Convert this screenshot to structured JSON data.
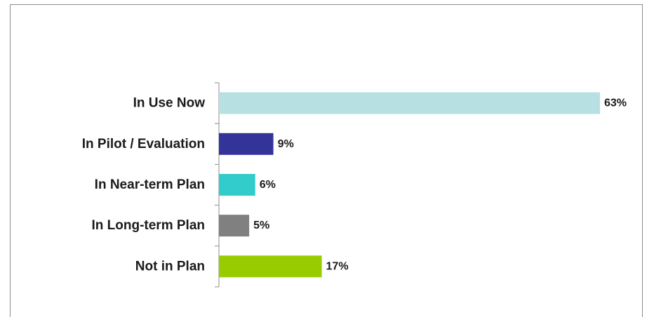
{
  "chart_data": {
    "type": "bar",
    "orientation": "horizontal",
    "categories": [
      "In Use Now",
      "In Pilot / Evaluation",
      "In Near-term Plan",
      "In Long-term Plan",
      "Not in Plan"
    ],
    "values": [
      63,
      9,
      6,
      5,
      17
    ],
    "value_labels": [
      "63%",
      "9%",
      "6%",
      "5%",
      "17%"
    ],
    "colors": [
      "#b7e0e3",
      "#333399",
      "#33cccc",
      "#808080",
      "#99cc00"
    ],
    "title": "",
    "xlabel": "",
    "ylabel": "",
    "xlim": [
      0,
      63
    ],
    "grid": false,
    "legend": "none"
  }
}
